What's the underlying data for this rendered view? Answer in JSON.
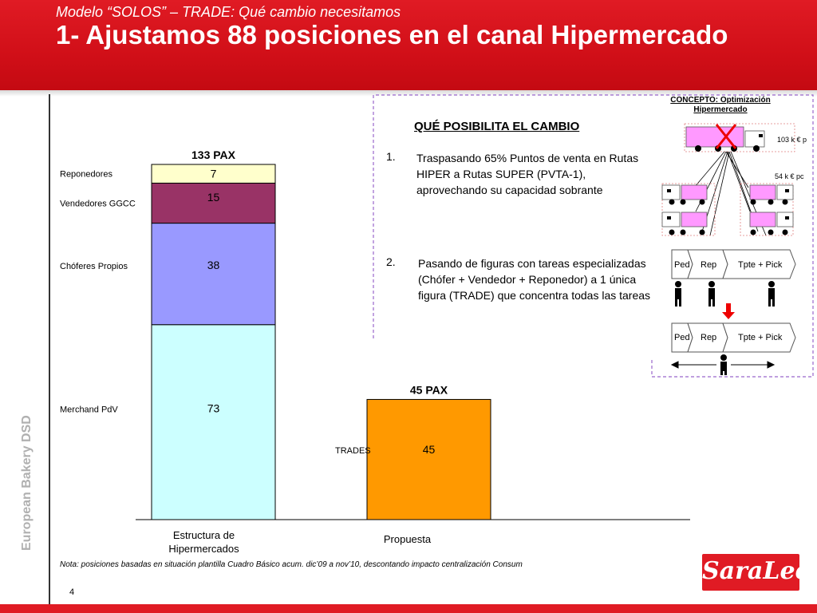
{
  "header": {
    "subtitle": "Modelo “SOLOS” – TRADE: Qué cambio necesitamos",
    "title": "1- Ajustamos 88 posiciones en el canal Hipermercado"
  },
  "sidebar": {
    "text": "European Bakery DSD"
  },
  "colors": {
    "brand_red": "#e01b24",
    "reponedores": "#ffffcc",
    "vendedores": "#993366",
    "choferes": "#9999ff",
    "merchand": "#ccffff",
    "trades": "#ff9900"
  },
  "chart_data": {
    "type": "bar",
    "stacked": true,
    "categories": [
      "Estructura de Hipermercados",
      "Propuesta"
    ],
    "totals": [
      "133 PAX",
      "45 PAX"
    ],
    "series": [
      {
        "name": "Merchand PdV",
        "values": [
          73,
          null
        ]
      },
      {
        "name": "Chóferes Propios",
        "values": [
          38,
          null
        ]
      },
      {
        "name": "Vendedores GGCC",
        "values": [
          15,
          null
        ]
      },
      {
        "name": "Reponedores",
        "values": [
          7,
          null
        ]
      },
      {
        "name": "TRADES",
        "values": [
          null,
          45
        ]
      }
    ],
    "ylim": [
      0,
      133
    ],
    "grid": false,
    "legend": "left-inline"
  },
  "panel": {
    "title": "QUÉ POSIBILITA EL CAMBIO",
    "items": [
      {
        "num": "1.",
        "text": "Traspasando 65% Puntos de venta en Rutas HIPER a Rutas SUPER (PVTA-1), aprovechando su capacidad sobrante"
      },
      {
        "num": "2.",
        "text": "Pasando de figuras con tareas especializadas (Chófer + Vendedor + Reponedor) a 1 única figura (TRADE) que concentra todas las tareas"
      }
    ]
  },
  "diagram": {
    "concept_title": "CONCEPTO: Optimización Hipermercado",
    "big_truck_cost": "103 k € p",
    "small_truck_cost": "54 k € pc",
    "cross_icon": "red-x-icon",
    "process_top": [
      "Ped",
      "Rep",
      "Tpte + Pick"
    ],
    "process_bottom": [
      "Ped",
      "Rep",
      "Tpte + Pick"
    ]
  },
  "footer": {
    "note": "Nota: posiciones basadas en situación plantilla Cuadro Básico acum. dic’09 a nov’10, descontando impacto centralización Consum",
    "page_number": "4",
    "logo_text": "SaraLee"
  }
}
